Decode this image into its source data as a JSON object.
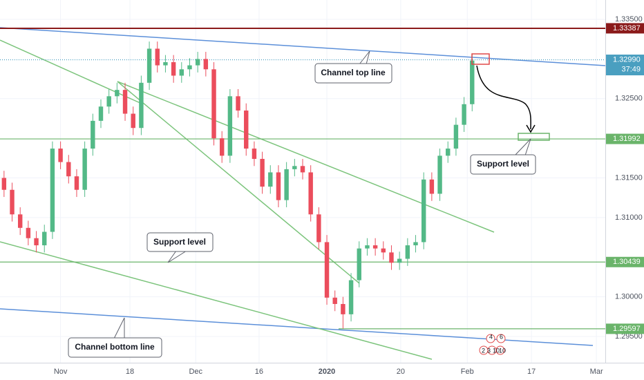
{
  "chart_data": {
    "type": "candlestick",
    "xlim": [
      0,
      150
    ],
    "ylim": [
      1.29169,
      1.33744
    ],
    "xticks": [
      {
        "value": 15,
        "label": "Nov"
      },
      {
        "value": 32.2,
        "label": "18"
      },
      {
        "value": 48.5,
        "label": "Dec"
      },
      {
        "value": 64.2,
        "label": "16"
      },
      {
        "value": 81,
        "label": "2020",
        "bold": true
      },
      {
        "value": 99.3,
        "label": "20"
      },
      {
        "value": 115.8,
        "label": "Feb"
      },
      {
        "value": 131.7,
        "label": "17"
      },
      {
        "value": 147.8,
        "label": "Mar"
      }
    ],
    "yticks": [
      {
        "value": 1.335,
        "label": "1.33500"
      },
      {
        "value": 1.325,
        "label": "1.32500"
      },
      {
        "value": 1.315,
        "label": "1.31500"
      },
      {
        "value": 1.31,
        "label": "1.31000"
      },
      {
        "value": 1.3,
        "label": "1.30000"
      },
      {
        "value": 1.295,
        "label": "1.29500"
      }
    ],
    "grid": true,
    "up_color": "#53b987",
    "down_color": "#eb4d5c",
    "x": [
      1,
      3,
      5,
      7,
      9,
      11,
      13,
      15,
      17,
      19,
      21,
      23,
      25,
      27,
      29,
      31,
      33,
      35,
      37,
      39,
      41,
      43,
      45,
      47,
      49,
      51,
      53,
      55,
      57,
      59,
      61,
      63,
      65,
      67,
      69,
      71,
      73,
      75,
      77,
      79,
      81,
      83,
      85,
      87,
      89,
      91,
      93,
      95,
      97,
      99,
      101,
      103,
      105,
      107,
      109,
      111,
      113,
      115,
      117
    ],
    "open": [
      1.315,
      1.3135,
      1.3104,
      1.3087,
      1.3074,
      1.3065,
      1.3082,
      1.3187,
      1.317,
      1.3152,
      1.3135,
      1.3187,
      1.3222,
      1.324,
      1.3253,
      1.3261,
      1.3231,
      1.3213,
      1.327,
      1.3313,
      1.3292,
      1.3296,
      1.3279,
      1.3287,
      1.3292,
      1.33,
      1.3287,
      1.32,
      1.3178,
      1.3253,
      1.3235,
      1.3187,
      1.3174,
      1.3139,
      1.3157,
      1.3122,
      1.3161,
      1.3165,
      1.3157,
      1.3104,
      1.3069,
      1.2999,
      1.2991,
      1.2978,
      1.3021,
      1.3061,
      1.3065,
      1.3061,
      1.3056,
      1.3043,
      1.3048,
      1.3065,
      1.3069,
      1.3148,
      1.313,
      1.3178,
      1.3187,
      1.3217,
      1.3243
    ],
    "high": [
      1.3159,
      1.3144,
      1.3113,
      1.3096,
      1.3083,
      1.3091,
      1.3196,
      1.3196,
      1.3179,
      1.3161,
      1.3196,
      1.3231,
      1.3249,
      1.3262,
      1.327,
      1.327,
      1.324,
      1.3279,
      1.3322,
      1.3322,
      1.3305,
      1.3305,
      1.3296,
      1.3301,
      1.3309,
      1.3309,
      1.3296,
      1.3209,
      1.3262,
      1.3262,
      1.3244,
      1.3196,
      1.3183,
      1.3166,
      1.3166,
      1.317,
      1.3174,
      1.3174,
      1.3166,
      1.3113,
      1.3078,
      1.3008,
      1.3,
      1.303,
      1.307,
      1.3074,
      1.3074,
      1.307,
      1.3065,
      1.3057,
      1.3074,
      1.3078,
      1.3157,
      1.3157,
      1.3187,
      1.3196,
      1.3226,
      1.3252,
      1.3307
    ],
    "low": [
      1.3126,
      1.3095,
      1.3078,
      1.3065,
      1.3056,
      1.3056,
      1.3073,
      1.3161,
      1.3143,
      1.3126,
      1.3126,
      1.3178,
      1.3213,
      1.3231,
      1.3244,
      1.3222,
      1.3204,
      1.3204,
      1.3261,
      1.3283,
      1.3283,
      1.327,
      1.327,
      1.3278,
      1.3283,
      1.3278,
      1.3191,
      1.3169,
      1.3169,
      1.3226,
      1.3178,
      1.3165,
      1.313,
      1.313,
      1.3113,
      1.3113,
      1.3152,
      1.3148,
      1.3095,
      1.306,
      1.299,
      1.2982,
      1.296,
      1.2969,
      1.3012,
      1.3052,
      1.3052,
      1.3047,
      1.3034,
      1.3034,
      1.3039,
      1.3056,
      1.306,
      1.3121,
      1.3121,
      1.3169,
      1.3178,
      1.3208,
      1.3234
    ],
    "close": [
      1.3135,
      1.3104,
      1.3087,
      1.3074,
      1.3065,
      1.3082,
      1.3187,
      1.317,
      1.3152,
      1.3135,
      1.3187,
      1.3222,
      1.324,
      1.3253,
      1.3261,
      1.3231,
      1.3213,
      1.327,
      1.3313,
      1.3292,
      1.3296,
      1.3279,
      1.3287,
      1.3292,
      1.33,
      1.3287,
      1.32,
      1.3178,
      1.3253,
      1.3235,
      1.3187,
      1.3174,
      1.3139,
      1.3157,
      1.3122,
      1.3161,
      1.3165,
      1.3157,
      1.3104,
      1.3069,
      1.2999,
      1.2991,
      1.2978,
      1.3021,
      1.3061,
      1.3065,
      1.3061,
      1.3056,
      1.3043,
      1.3048,
      1.3065,
      1.3069,
      1.3148,
      1.313,
      1.3178,
      1.3187,
      1.3217,
      1.3243,
      1.3298
    ],
    "levels": [
      {
        "value": 1.33387,
        "color": "#8b1a1a"
      },
      {
        "value": 1.3299,
        "label": "1.32990",
        "color": "#4a9fc0",
        "dotted": true,
        "countdown": "37:49"
      },
      {
        "value": 1.31992,
        "color": "#6ab46a"
      },
      {
        "value": 1.30439,
        "color": "#6ab46a"
      },
      {
        "value": 1.29597,
        "color": "#6ab46a"
      }
    ],
    "annotations": [
      "Channel top line",
      "Support level",
      "Support level",
      "Channel bottom line"
    ],
    "events": [
      "4",
      "6",
      "2",
      "3",
      "10",
      "10"
    ]
  }
}
